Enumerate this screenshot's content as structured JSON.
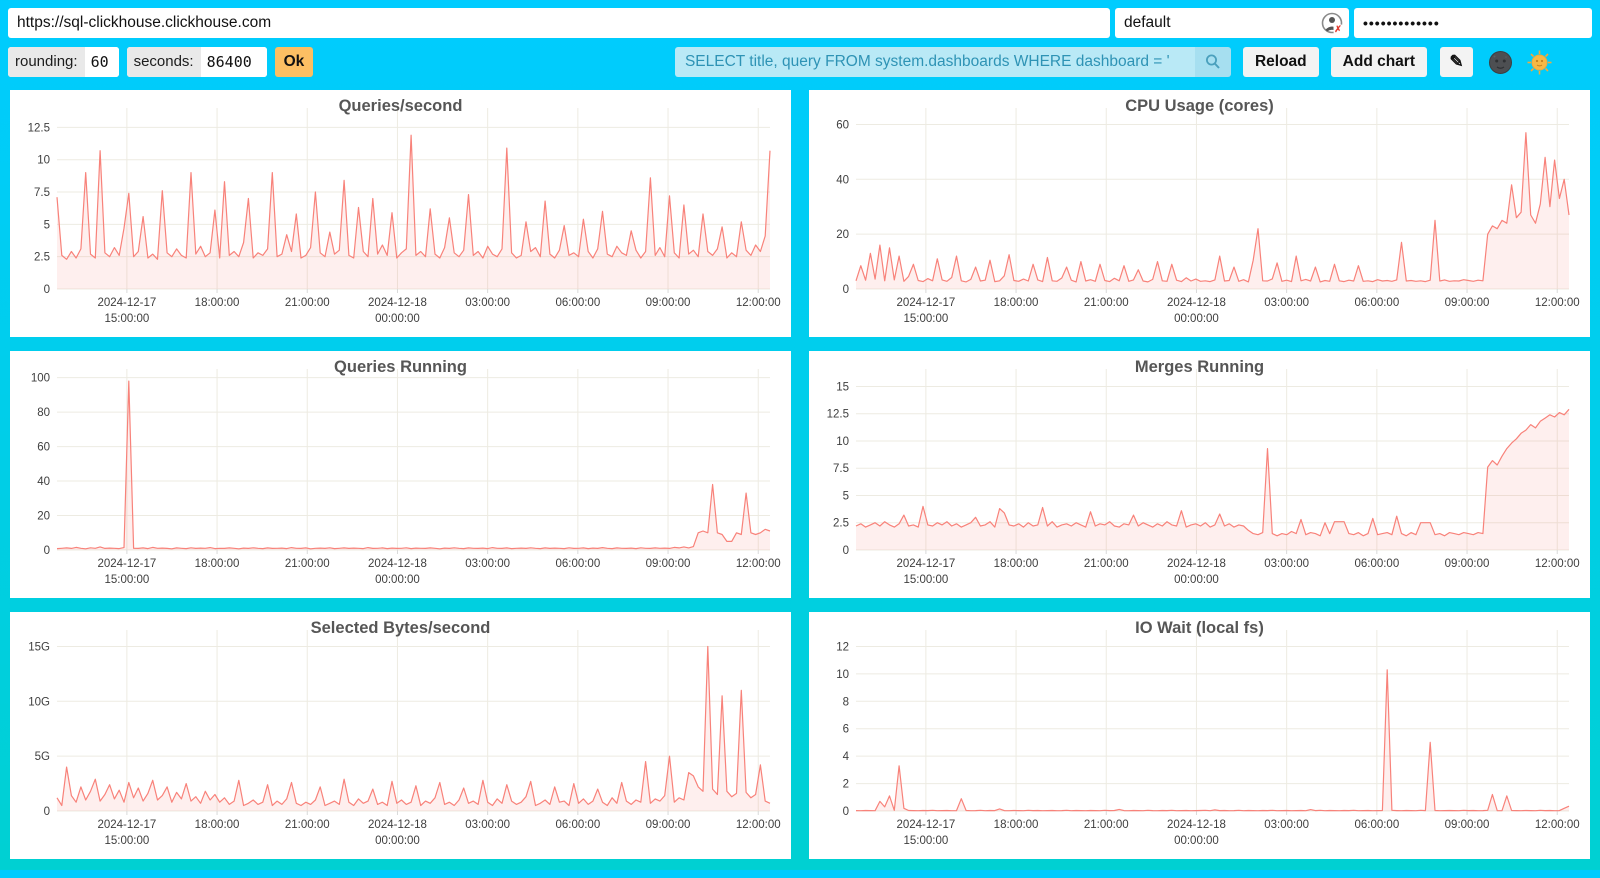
{
  "colors": {
    "background_top": "#00ccff",
    "background_bottom": "#00d0d2",
    "line": "#f8827a",
    "fill": "rgba(248,130,122,0.13)",
    "grid": "#edebe2",
    "axis_text": "#3e3e3e",
    "ok_button": "#fcbf63",
    "query_bg": "#b9e9f6",
    "query_text": "#2e93b5"
  },
  "topbar": {
    "url": "https://sql-clickhouse.clickhouse.com",
    "user": "default",
    "password": "•••••••••••••",
    "rounding_label": "rounding:",
    "rounding_value": "60",
    "seconds_label": "seconds:",
    "seconds_value": "86400",
    "ok": "Ok",
    "query": "SELECT title, query FROM system.dashboards WHERE dashboard = '",
    "reload": "Reload",
    "add_chart": "Add chart",
    "edit_glyph": "✎",
    "icons": {
      "user_status": "user-circle-with-red-x",
      "search": "magnifier",
      "edit": "pencil",
      "theme_dark": "moon-face",
      "theme_light": "sun-face"
    }
  },
  "x_axis_ticks": [
    {
      "pos": 0.098,
      "lines": [
        "2024-12-17",
        "15:00:00"
      ]
    },
    {
      "pos": 0.2245,
      "lines": [
        "18:00:00"
      ]
    },
    {
      "pos": 0.351,
      "lines": [
        "21:00:00"
      ]
    },
    {
      "pos": 0.4775,
      "lines": [
        "2024-12-18",
        "00:00:00"
      ]
    },
    {
      "pos": 0.604,
      "lines": [
        "03:00:00"
      ]
    },
    {
      "pos": 0.7305,
      "lines": [
        "06:00:00"
      ]
    },
    {
      "pos": 0.857,
      "lines": [
        "09:00:00"
      ]
    },
    {
      "pos": 0.9835,
      "lines": [
        "12:00:00"
      ]
    }
  ],
  "chart_data": [
    {
      "type": "line",
      "title": "Queries/second",
      "ylim": [
        0,
        14
      ],
      "ymax": 14,
      "y_ticks": [
        0,
        2.5,
        5,
        7.5,
        10,
        12.5
      ],
      "y_tick_labels": [
        "0",
        "2.5",
        "5",
        "7.5",
        "10",
        "12.5"
      ],
      "values": [
        7.1,
        2.6,
        2.3,
        2.9,
        2.4,
        3.1,
        9,
        2.7,
        2.4,
        10.7,
        2.8,
        2.5,
        3.2,
        2.6,
        4.7,
        7.4,
        2.5,
        2.9,
        5.6,
        2.4,
        2.7,
        2.3,
        7.6,
        2.8,
        2.5,
        3.1,
        2.6,
        2.4,
        9,
        2.7,
        3.3,
        2.5,
        2.8,
        6.1,
        2.4,
        8.3,
        2.6,
        2.9,
        2.5,
        3.6,
        7,
        2.4,
        2.8,
        2.6,
        3.1,
        9,
        2.5,
        2.7,
        4.2,
        2.9,
        5.8,
        2.4,
        2.6,
        3.2,
        7.5,
        2.8,
        2.5,
        4.4,
        2.7,
        3,
        8.4,
        2.6,
        2.4,
        6.3,
        2.9,
        2.5,
        7,
        2.7,
        3.4,
        2.6,
        5.9,
        2.4,
        2.8,
        3.1,
        11.9,
        2.6,
        2.9,
        2.5,
        6.2,
        2.7,
        2.4,
        3.2,
        5.5,
        2.8,
        2.5,
        3,
        7.3,
        2.6,
        2.9,
        2.4,
        3.3,
        2.7,
        2.5,
        3.1,
        10.9,
        2.8,
        2.4,
        2.6,
        5.2,
        2.9,
        3.2,
        2.5,
        6.8,
        2.7,
        2.4,
        3,
        4.9,
        2.6,
        2.8,
        2.5,
        5.4,
        2.9,
        2.4,
        3.1,
        6,
        2.7,
        2.5,
        3.3,
        2.8,
        2.6,
        4.5,
        3,
        2.4,
        2.9,
        8.6,
        2.6,
        3.2,
        2.5,
        7.2,
        2.8,
        2.4,
        6.5,
        2.7,
        3,
        2.5,
        5.8,
        2.9,
        2.6,
        3.1,
        4.8,
        2.4,
        2.8,
        2.5,
        5.2,
        3,
        2.6,
        3.4,
        2.9,
        4.1,
        10.7
      ]
    },
    {
      "type": "line",
      "title": "CPU Usage (cores)",
      "ylim": [
        0,
        66
      ],
      "ymax": 66,
      "y_ticks": [
        0,
        20,
        40,
        60
      ],
      "y_tick_labels": [
        "0",
        "20",
        "40",
        "60"
      ],
      "values": [
        3,
        8.5,
        3.2,
        13,
        3.6,
        16,
        3,
        15,
        3.3,
        12,
        2.8,
        4.6,
        9,
        3.1,
        2.7,
        3.8,
        3,
        11,
        3.3,
        2.8,
        4.2,
        12,
        3,
        2.6,
        3.5,
        8,
        2.9,
        3.2,
        10.5,
        2.7,
        3,
        4.8,
        12.5,
        3.1,
        2.8,
        3.6,
        2.9,
        9,
        3.3,
        2.7,
        11.5,
        3,
        2.8,
        4,
        8,
        3.2,
        2.6,
        10,
        2.9,
        3.4,
        2.8,
        9,
        3.1,
        2.7,
        3.9,
        3,
        8.5,
        2.8,
        3.3,
        7,
        2.9,
        2.6,
        3.5,
        10,
        3,
        2.8,
        9,
        3.2,
        2.7,
        4.1,
        2.9,
        3.6,
        2.8,
        3,
        2.7,
        3.3,
        12,
        2.9,
        3.1,
        8,
        2.8,
        3.4,
        2.6,
        10.5,
        22,
        3,
        2.9,
        3.7,
        9.5,
        2.8,
        3.2,
        2.7,
        12,
        3,
        3.5,
        2.9,
        8,
        2.6,
        3.1,
        2.8,
        9,
        3,
        2.7,
        3.2,
        2.9,
        8.5,
        2.8,
        3,
        2.7,
        3.4,
        2.9,
        3.1,
        2.8,
        3.3,
        17,
        2.9,
        3.1,
        2.8,
        3,
        2.7,
        3.2,
        25,
        2.9,
        3.3,
        2.8,
        3,
        2.9,
        3.4,
        3.1,
        2.8,
        3.2,
        3,
        20,
        23,
        22,
        25,
        24,
        38,
        26,
        28,
        57,
        27,
        24,
        31,
        48,
        30,
        47,
        33,
        40,
        27
      ]
    },
    {
      "type": "line",
      "title": "Queries Running",
      "ylim": [
        0,
        105
      ],
      "ymax": 105,
      "y_ticks": [
        0,
        20,
        40,
        60,
        80,
        100
      ],
      "y_tick_labels": [
        "0",
        "20",
        "40",
        "60",
        "80",
        "100"
      ],
      "values": [
        0.8,
        1,
        1.2,
        0.9,
        1.5,
        1,
        0.7,
        1.3,
        1,
        1.8,
        0.9,
        1.1,
        1,
        0.8,
        1.4,
        98,
        1,
        0.9,
        1.2,
        0.8,
        1.5,
        1,
        1.1,
        0.9,
        0.7,
        1.2,
        1,
        0.8,
        1.3,
        0.9,
        1.1,
        1,
        1.4,
        0.8,
        1,
        0.9,
        1.2,
        1,
        0.7,
        1.1,
        0.9,
        1.3,
        1,
        0.8,
        1.2,
        0.9,
        1,
        1.1,
        0.8,
        1.4,
        1,
        0.9,
        1.2,
        0.7,
        1,
        1.1,
        0.9,
        1.3,
        0.8,
        1,
        1.2,
        0.9,
        1.1,
        1,
        0.8,
        1.4,
        0.9,
        1,
        1.2,
        0.8,
        1.1,
        0.9,
        1,
        1.3,
        0.8,
        1.1,
        1,
        0.9,
        1.2,
        1,
        0.7,
        1.1,
        0.9,
        1.3,
        1,
        0.8,
        1.2,
        1,
        0.9,
        1.1,
        0.8,
        1.4,
        1,
        0.9,
        1.2,
        0.8,
        1,
        1.1,
        0.9,
        1.3,
        1,
        0.8,
        1.2,
        0.9,
        1.1,
        1,
        0.8,
        1.3,
        0.9,
        1,
        1.2,
        0.8,
        1.1,
        0.9,
        1.4,
        1,
        0.8,
        1.2,
        1,
        0.9,
        1.1,
        0.8,
        1.3,
        1,
        0.9,
        1.2,
        1,
        1.1,
        0.9,
        1.5,
        1.2,
        1.8,
        1.2,
        2,
        10,
        11,
        10,
        38,
        10,
        9,
        5,
        5,
        10,
        9,
        33,
        10,
        9,
        10,
        12,
        11
      ]
    },
    {
      "type": "line",
      "title": "Merges Running",
      "ylim": [
        0,
        16.6
      ],
      "ymax": 16.6,
      "y_ticks": [
        0,
        2.5,
        5,
        7.5,
        10,
        12.5,
        15
      ],
      "y_tick_labels": [
        "0",
        "2.5",
        "5",
        "7.5",
        "10",
        "12.5",
        "15"
      ],
      "values": [
        2.2,
        2.4,
        2.1,
        2.3,
        2.5,
        2.2,
        2.6,
        2.3,
        2.1,
        2.4,
        3.2,
        2.2,
        2.3,
        2.1,
        4,
        2.3,
        2.2,
        2.5,
        2.3,
        2.6,
        2.2,
        2.4,
        2.1,
        2.3,
        2.5,
        3,
        2.2,
        2.3,
        2.6,
        2.1,
        3.8,
        3.4,
        2.3,
        2.2,
        2.4,
        2.1,
        2.5,
        2.2,
        2.3,
        3.9,
        2.2,
        2.6,
        2.1,
        2.3,
        2.4,
        2.2,
        2.5,
        2.3,
        2.1,
        3.5,
        2.2,
        2.4,
        2.3,
        2.6,
        2.2,
        2.1,
        2.4,
        2.3,
        3.2,
        2.2,
        2.5,
        2.3,
        2.1,
        2.4,
        2.2,
        2.6,
        2.3,
        2.2,
        3.6,
        2.1,
        2.3,
        2.4,
        2.2,
        2.5,
        2.1,
        2.3,
        3.3,
        2.2,
        2.4,
        2.1,
        2.3,
        2.2,
        1.8,
        1.5,
        1.4,
        1.6,
        9.3,
        1.5,
        1.3,
        1.5,
        1.4,
        1.7,
        1.5,
        2.8,
        1.4,
        1.6,
        1.5,
        1.3,
        2.5,
        1.5,
        2.6,
        2.6,
        2.6,
        1.5,
        1.4,
        1.6,
        1.3,
        1.5,
        2.9,
        1.4,
        1.5,
        1.6,
        1.4,
        3.1,
        1.5,
        1.3,
        1.6,
        1.4,
        2.5,
        2.5,
        2.5,
        1.4,
        1.5,
        1.3,
        1.6,
        1.5,
        1.4,
        1.6,
        1.5,
        1.4,
        1.6,
        1.5,
        7.6,
        8.2,
        7.8,
        8.6,
        9.3,
        9.8,
        10.2,
        10.7,
        11,
        11.5,
        11.2,
        11.8,
        12.1,
        12.4,
        12.2,
        12.6,
        12.4,
        12.9
      ]
    },
    {
      "type": "line",
      "title": "Selected Bytes/second",
      "unit": "G",
      "ylim": [
        0,
        16.5
      ],
      "ymax": 16.5,
      "y_ticks": [
        0,
        5,
        10,
        15
      ],
      "y_tick_labels": [
        "0",
        "5G",
        "10G",
        "15G"
      ],
      "values": [
        1.2,
        0.5,
        4,
        1.4,
        0.8,
        2.2,
        1,
        1.8,
        2.9,
        0.9,
        1.5,
        2.4,
        1.1,
        1.9,
        0.8,
        2.6,
        1.2,
        2.1,
        0.9,
        1.6,
        2.8,
        1,
        1.4,
        2.2,
        0.8,
        1.7,
        1.1,
        2.5,
        0.9,
        1.3,
        0.7,
        1.8,
        1,
        1.5,
        0.8,
        1.2,
        0.6,
        0.9,
        2.8,
        0.5,
        0.7,
        1,
        0.6,
        0.8,
        2.4,
        0.5,
        0.9,
        0.6,
        1.1,
        2.6,
        0.7,
        0.5,
        0.8,
        0.6,
        1,
        2.2,
        0.5,
        0.7,
        0.9,
        0.6,
        2.9,
        0.8,
        0.5,
        1.1,
        0.7,
        0.9,
        2,
        0.6,
        0.8,
        0.5,
        2.7,
        0.7,
        1,
        0.6,
        0.8,
        2.3,
        0.5,
        0.9,
        0.7,
        1.2,
        2.6,
        0.6,
        0.8,
        0.5,
        1,
        2.1,
        0.7,
        0.9,
        0.6,
        2.8,
        0.8,
        0.5,
        1.1,
        0.7,
        2.4,
        0.9,
        0.6,
        0.8,
        1.3,
        2.7,
        0.5,
        0.7,
        1,
        0.6,
        2.2,
        0.8,
        0.9,
        0.5,
        2.5,
        0.7,
        1.1,
        0.6,
        0.9,
        2,
        0.8,
        0.5,
        1.2,
        0.7,
        2.6,
        0.9,
        0.6,
        1,
        0.8,
        4.5,
        0.7,
        1.1,
        0.9,
        1.4,
        5,
        0.8,
        1.2,
        1,
        3.5,
        3.2,
        2.2,
        1.8,
        15,
        2,
        1.5,
        10.5,
        1.8,
        1.3,
        1.6,
        11,
        1.7,
        1.2,
        1.5,
        4.2,
        0.9,
        0.7
      ]
    },
    {
      "type": "line",
      "title": "IO Wait (local fs)",
      "ylim": [
        0,
        13.2
      ],
      "ymax": 13.2,
      "y_ticks": [
        0,
        2,
        4,
        6,
        8,
        10,
        12
      ],
      "y_tick_labels": [
        "0",
        "2",
        "4",
        "6",
        "8",
        "10",
        "12"
      ],
      "values": [
        0.03,
        0.02,
        0.04,
        0.03,
        0.02,
        0.7,
        0.3,
        1.1,
        0.05,
        3.3,
        0.2,
        0.04,
        0.03,
        0.02,
        0.04,
        0.03,
        0.05,
        0.02,
        0.03,
        0.04,
        0.02,
        0.03,
        0.9,
        0.04,
        0.02,
        0.03,
        0.05,
        0.02,
        0.04,
        0.03,
        0.15,
        0.03,
        0.02,
        0.04,
        0.03,
        0.02,
        0.05,
        0.03,
        0.04,
        0.02,
        0.03,
        0.04,
        0.02,
        0.03,
        0.05,
        0.02,
        0.04,
        0.03,
        0.02,
        0.04,
        0.03,
        0.02,
        0.05,
        0.03,
        0.04,
        0.12,
        0.03,
        0.02,
        0.04,
        0.03,
        0.02,
        0.05,
        0.03,
        0.02,
        0.04,
        0.03,
        0.05,
        0.02,
        0.03,
        0.04,
        0.02,
        0.03,
        0.04,
        0.05,
        0.02,
        0.08,
        0.03,
        0.04,
        0.02,
        0.03,
        0.05,
        0.02,
        0.04,
        0.03,
        0.02,
        0.04,
        0.03,
        0.05,
        0.02,
        0.03,
        0.04,
        0.02,
        0.03,
        0.04,
        0.02,
        0.1,
        0.03,
        0.05,
        0.02,
        0.04,
        0.03,
        0.02,
        0.04,
        0.03,
        0.05,
        0.02,
        0.03,
        0.04,
        0.02,
        0.03,
        0.04,
        10.3,
        0.05,
        0.03,
        0.02,
        0.04,
        0.03,
        0.02,
        0.05,
        0.03,
        5,
        0.04,
        0.02,
        0.03,
        0.04,
        0.03,
        0.02,
        0.05,
        0.03,
        0.04,
        0.02,
        0.03,
        0.05,
        1.2,
        0.03,
        0.02,
        1.1,
        0.04,
        0.03,
        0.02,
        0.04,
        0.03,
        0.02,
        0.05,
        0.03,
        0.04,
        0.02,
        0.03,
        0.2,
        0.35
      ]
    }
  ]
}
